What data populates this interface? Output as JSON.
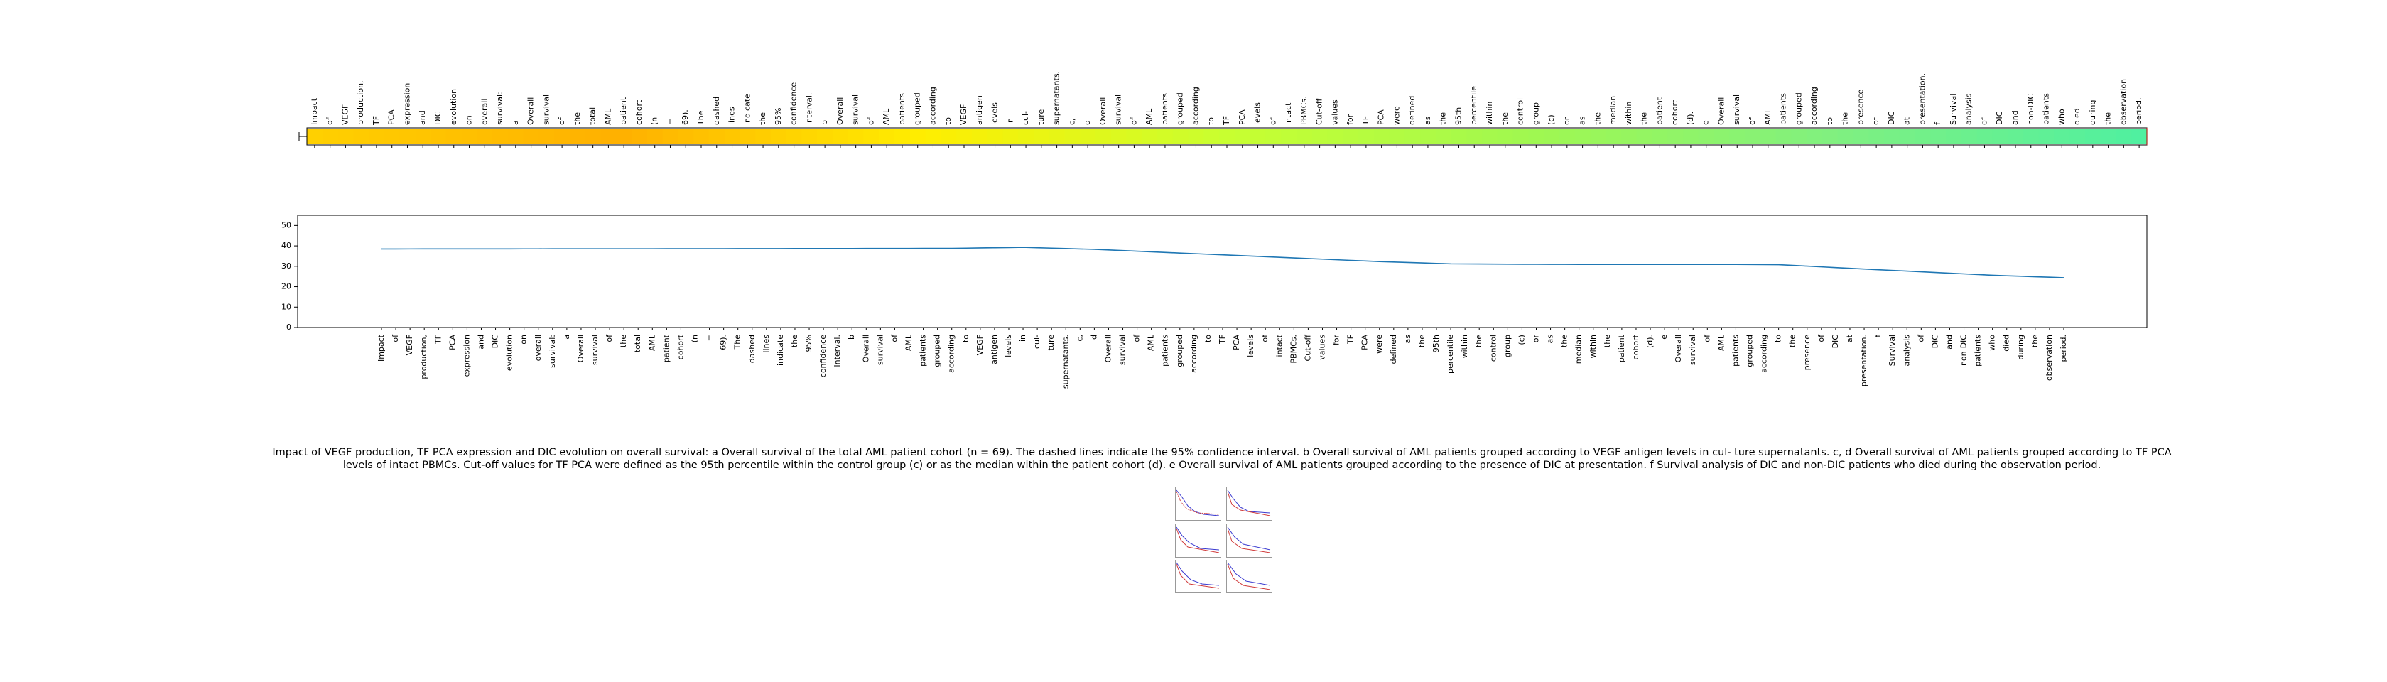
{
  "words": [
    "Impact",
    "of",
    "VEGF",
    "production,",
    "TF",
    "PCA",
    "expression",
    "and",
    "DIC",
    "evolution",
    "on",
    "overall",
    "survival:",
    "a",
    "Overall",
    "survival",
    "of",
    "the",
    "total",
    "AML",
    "patient",
    "cohort",
    "(n",
    "=",
    "69).",
    "The",
    "dashed",
    "lines",
    "indicate",
    "the",
    "95%",
    "confidence",
    "interval.",
    "b",
    "Overall",
    "survival",
    "of",
    "AML",
    "patients",
    "grouped",
    "according",
    "to",
    "VEGF",
    "antigen",
    "levels",
    "in",
    "cul-",
    "ture",
    "supernatants.",
    "c,",
    "d",
    "Overall",
    "survival",
    "of",
    "AML",
    "patients",
    "grouped",
    "according",
    "to",
    "TF",
    "PCA",
    "levels",
    "of",
    "intact",
    "PBMCs.",
    "Cut-off",
    "values",
    "for",
    "TF",
    "PCA",
    "were",
    "defined",
    "as",
    "the",
    "95th",
    "percentile",
    "within",
    "the",
    "control",
    "group",
    "(c)",
    "or",
    "as",
    "the",
    "median",
    "within",
    "the",
    "patient",
    "cohort",
    "(d).",
    "e",
    "Overall",
    "survival",
    "of",
    "AML",
    "patients",
    "grouped",
    "according",
    "to",
    "the",
    "presence",
    "of",
    "DIC",
    "at",
    "presentation.",
    "f",
    "Survival",
    "analysis",
    "of",
    "DIC",
    "and",
    "non-DIC",
    "patients",
    "who",
    "died",
    "during",
    "the",
    "observation",
    "period."
  ],
  "caption": "Impact of VEGF production, TF PCA expression and DIC evolution on overall survival: a Overall survival of the total AML patient cohort (n = 69). The dashed lines indicate the 95% confidence interval. b Overall survival of AML patients grouped according to VEGF antigen levels in cul- ture supernatants. c, d Overall survival of AML patients grouped according to TF PCA levels of intact PBMCs. Cut-off values for TF PCA were defined as the 95th percentile within the control group (c) or as the median within the patient cohort (d). e Overall survival of AML patients grouped according to the presence of DIC at presentation. f Survival analysis of DIC and non-DIC patients who died during the observation period.",
  "chart_data": [
    {
      "type": "heatmap",
      "categories_ref": "words",
      "colormap": "Wistia-to-green",
      "color_stops": [
        "#ffd000",
        "#ffb000",
        "#ffee00",
        "#c8ff30",
        "#a0f850",
        "#80f080",
        "#50f0a0"
      ],
      "ylim": [
        0,
        55
      ]
    },
    {
      "type": "line",
      "categories_ref": "words",
      "x": [
        0,
        118
      ],
      "yticks": [
        0,
        10,
        20,
        30,
        40,
        50
      ],
      "ylim": [
        0,
        55
      ],
      "xlabel": "",
      "ylabel": "",
      "line_color": "#1f77b4",
      "points": [
        [
          0,
          38.5
        ],
        [
          20,
          38.6
        ],
        [
          40,
          38.8
        ],
        [
          45,
          39.3
        ],
        [
          50,
          38.3
        ],
        [
          55,
          36.8
        ],
        [
          60,
          35.3
        ],
        [
          65,
          33.8
        ],
        [
          70,
          32.3
        ],
        [
          75,
          31.2
        ],
        [
          80,
          31.0
        ],
        [
          85,
          30.9
        ],
        [
          90,
          30.9
        ],
        [
          95,
          30.9
        ],
        [
          98,
          30.8
        ],
        [
          103,
          29.0
        ],
        [
          108,
          27.3
        ],
        [
          113,
          25.6
        ],
        [
          118,
          24.4
        ]
      ]
    }
  ],
  "thumbnail": {
    "name": "figure-thumbnail",
    "colors": [
      "#3b3bd0",
      "#d03b3b",
      "#3b3bd0"
    ]
  }
}
